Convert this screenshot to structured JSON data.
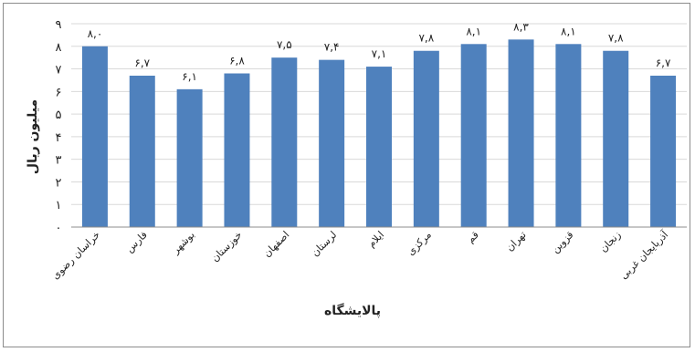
{
  "chart_data": {
    "type": "bar",
    "title": "",
    "xlabel": "پالایشگاه",
    "ylabel": "میلیون ریال",
    "ylim": [
      0,
      9
    ],
    "yticks": [
      "۰",
      "۱",
      "۲",
      "۳",
      "۴",
      "۵",
      "۶",
      "۷",
      "۸",
      "۹"
    ],
    "grid": true,
    "legend": "none",
    "bar_color": "#4F81BD",
    "categories": [
      "خراسان رضوی",
      "فارس",
      "بوشهر",
      "خوزستان",
      "اصفهان",
      "لرستان",
      "ایلام",
      "مرکزی",
      "قم",
      "تهران",
      "قزوین",
      "زنجان",
      "آذربایجان غربی"
    ],
    "values": [
      8.0,
      6.7,
      6.1,
      6.8,
      7.5,
      7.4,
      7.1,
      7.8,
      8.1,
      8.3,
      8.1,
      7.8,
      6.7
    ],
    "data_labels": [
      "۸,۰",
      "۶,۷",
      "۶,۱",
      "۶,۸",
      "۷,۵",
      "۷,۴",
      "۷,۱",
      "۷,۸",
      "۸,۱",
      "۸,۳",
      "۸,۱",
      "۷,۸",
      "۶,۷"
    ]
  }
}
